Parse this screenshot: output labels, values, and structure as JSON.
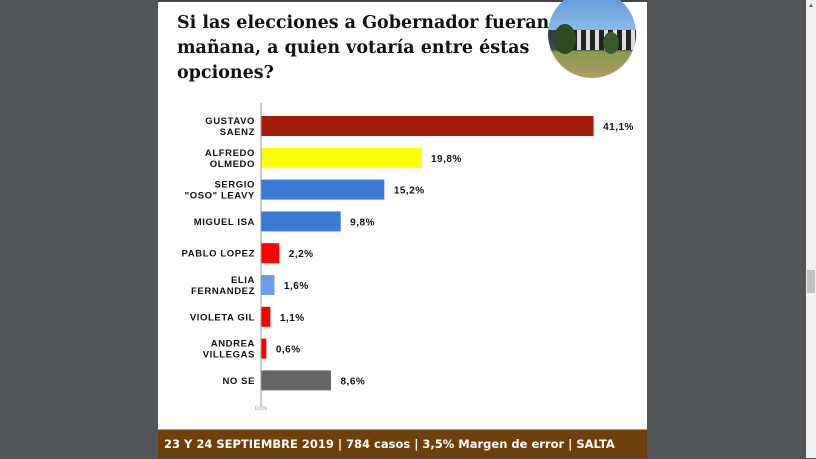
{
  "chart_data": {
    "type": "bar",
    "orientation": "horizontal",
    "title": "Si las elecciones a Gobernador fueran mañana, a quien  votaría entre éstas opciones?",
    "categories": [
      [
        "GUSTAVO",
        "SAENZ"
      ],
      [
        "ALFREDO",
        "OLMEDO"
      ],
      [
        "SERGIO",
        "\"OSO\" LEAVY"
      ],
      [
        "MIGUEL ISA"
      ],
      [
        "PABLO LOPEZ"
      ],
      [
        "ELIA",
        "FERNANDEZ"
      ],
      [
        "VIOLETA GIL"
      ],
      [
        "ANDREA",
        "VILLEGAS"
      ],
      [
        "NO SE"
      ]
    ],
    "values": [
      41.1,
      19.8,
      15.2,
      9.8,
      2.2,
      1.6,
      1.1,
      0.6,
      8.6
    ],
    "value_labels": [
      "41,1%",
      "19,8%",
      "15,2%",
      "9,8%",
      "2,2%",
      "1,6%",
      "1,1%",
      "0,6%",
      "8,6%"
    ],
    "colors": [
      "#a51d0a",
      "#ffff00",
      "#3c78d8",
      "#3c78d8",
      "#ff0000",
      "#6d9eeb",
      "#ff0000",
      "#ff0000",
      "#666666"
    ],
    "axis_tick": "0,0%",
    "xlim": [
      0,
      50
    ],
    "grid": false
  },
  "footer": "23 Y 24 SEPTIEMBRE 2019 |  784 casos  |  3,5% Margen de error  |  SALTA"
}
